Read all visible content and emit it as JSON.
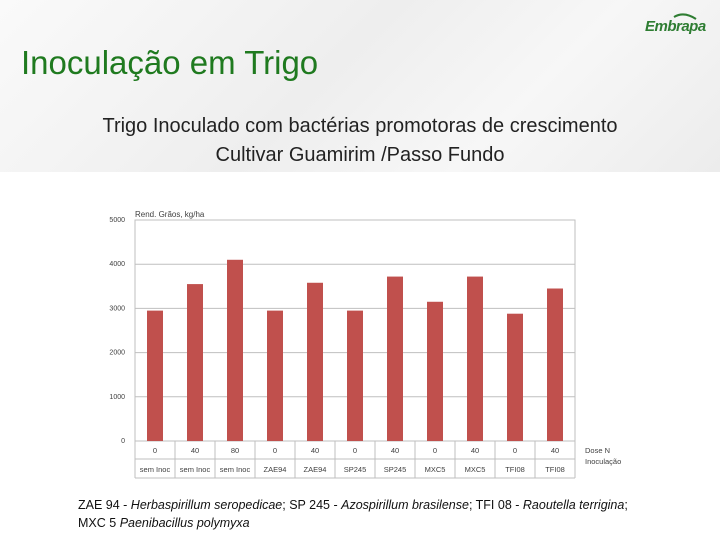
{
  "header": {
    "title": "Inoculação em Trigo",
    "logo_text": "Embrapa",
    "subtitle_line1": "Trigo Inoculado com bactérias promotoras de crescimento",
    "subtitle_line2": "Cultivar Guamirim /Passo Fundo"
  },
  "colors": {
    "title": "#1f7a1f",
    "bar": "#c0504d",
    "logo": "#2e7d32"
  },
  "caption": {
    "line1_parts": [
      "ZAE 94 - ",
      "Herbaspirillum seropedicae",
      "; SP 245 - ",
      "Azospirillum brasilense",
      "; TFI 08 - ",
      "Raoutella terrigina",
      ";"
    ],
    "line2_parts": [
      "MXC 5 ",
      "Paenibacillus polymyxa"
    ]
  },
  "chart_data": {
    "type": "bar",
    "title": "Rend. Grãos, kg/ha",
    "ylim": [
      0,
      5000
    ],
    "yticks": [
      0,
      1000,
      2000,
      3000,
      4000,
      5000
    ],
    "grid": true,
    "x_row1_label": "Dose N",
    "x_row2_label": "Inoculação",
    "dose_n": [
      "0",
      "40",
      "80",
      "0",
      "40",
      "0",
      "40",
      "0",
      "40",
      "0",
      "40"
    ],
    "inoculacao": [
      "sem Inoc",
      "sem Inoc",
      "sem Inoc",
      "ZAE94",
      "ZAE94",
      "SP245",
      "SP245",
      "MXC5",
      "MXC5",
      "TFI08",
      "TFI08"
    ],
    "values": [
      2950,
      3550,
      4100,
      2950,
      3580,
      2950,
      3720,
      3150,
      3720,
      2880,
      3450
    ]
  }
}
